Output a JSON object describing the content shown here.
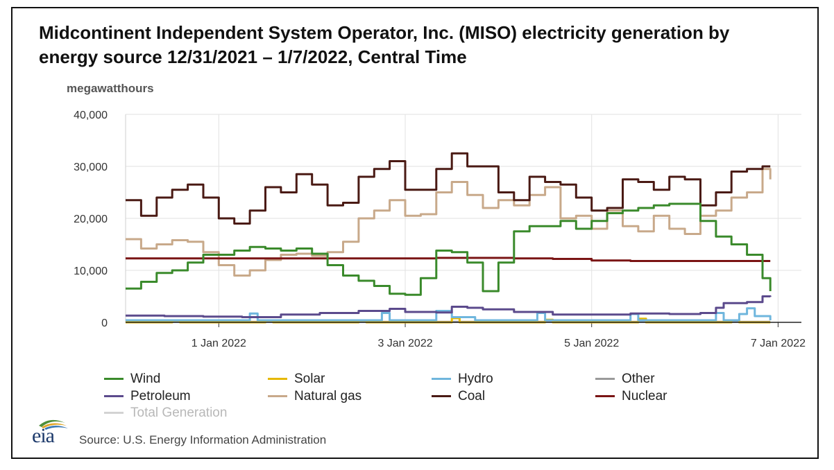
{
  "chart_data": {
    "type": "line",
    "title": "Midcontinent Independent System Operator, Inc. (MISO) electricity generation by energy source 12/31/2021 – 1/7/2022, Central Time",
    "ylabel": "megawatthours",
    "xlabel": "",
    "ylim": [
      0,
      40000
    ],
    "xlim": [
      0,
      174
    ],
    "x_units": "hours since 12/31/2021 00:00",
    "y_ticks": [
      0,
      10000,
      20000,
      30000,
      40000
    ],
    "y_tick_labels": [
      "0",
      "10,000",
      "20,000",
      "30,000",
      "40,000"
    ],
    "x_ticks": [
      24,
      72,
      120,
      168
    ],
    "x_tick_labels": [
      "1 Jan 2022",
      "3 Jan 2022",
      "5 Jan 2022",
      "7 Jan 2022"
    ],
    "grid": true,
    "legend_position": "bottom",
    "series": [
      {
        "name": "Wind",
        "color": "#3a8a2b",
        "x": [
          0,
          4,
          8,
          12,
          16,
          20,
          24,
          28,
          32,
          36,
          40,
          44,
          48,
          52,
          56,
          60,
          64,
          68,
          72,
          76,
          80,
          84,
          88,
          92,
          96,
          100,
          104,
          108,
          112,
          116,
          120,
          124,
          128,
          132,
          136,
          140,
          144,
          148,
          152,
          156,
          160,
          164,
          166
        ],
        "y": [
          6500,
          7800,
          9500,
          10000,
          11500,
          13000,
          13000,
          13800,
          14500,
          14200,
          13800,
          14200,
          13200,
          11000,
          9000,
          8000,
          7000,
          5500,
          5300,
          8500,
          13800,
          13500,
          11500,
          6000,
          11500,
          17500,
          18500,
          18500,
          19500,
          18000,
          19500,
          21000,
          21500,
          22000,
          22500,
          22800,
          22800,
          19500,
          16500,
          15000,
          13000,
          8500,
          6000
        ]
      },
      {
        "name": "Solar",
        "color": "#e6b800",
        "x": [
          0,
          10,
          12,
          14,
          24,
          34,
          36,
          38,
          48,
          58,
          60,
          62,
          72,
          82,
          84,
          86,
          96,
          106,
          108,
          110,
          120,
          130,
          132,
          134,
          144,
          154,
          156,
          158,
          166
        ],
        "y": [
          0,
          0,
          350,
          0,
          0,
          0,
          350,
          0,
          0,
          0,
          350,
          0,
          0,
          0,
          800,
          0,
          0,
          0,
          500,
          0,
          0,
          0,
          700,
          0,
          0,
          0,
          400,
          0,
          0
        ]
      },
      {
        "name": "Hydro",
        "color": "#6fb6dd",
        "x": [
          0,
          20,
          30,
          32,
          34,
          44,
          50,
          60,
          64,
          66,
          68,
          72,
          78,
          80,
          82,
          84,
          90,
          100,
          104,
          106,
          108,
          120,
          128,
          130,
          132,
          136,
          150,
          152,
          154,
          158,
          160,
          162,
          166
        ],
        "y": [
          400,
          400,
          400,
          1700,
          400,
          400,
          400,
          400,
          400,
          1800,
          400,
          400,
          400,
          2200,
          2200,
          1000,
          400,
          400,
          400,
          1800,
          400,
          400,
          400,
          1600,
          400,
          400,
          400,
          1800,
          400,
          1600,
          2700,
          1200,
          400
        ]
      },
      {
        "name": "Other",
        "color": "#9a9a9a",
        "x": [
          0,
          166
        ],
        "y": [
          100,
          100
        ]
      },
      {
        "name": "Petroleum",
        "color": "#5b4a8c",
        "x": [
          0,
          10,
          20,
          30,
          40,
          50,
          60,
          68,
          72,
          80,
          84,
          88,
          92,
          100,
          110,
          120,
          130,
          140,
          148,
          152,
          154,
          160,
          164,
          166
        ],
        "y": [
          1300,
          1200,
          1100,
          1000,
          1500,
          1800,
          2200,
          2600,
          2000,
          1900,
          3000,
          2800,
          2500,
          2000,
          1500,
          1500,
          1700,
          1600,
          1800,
          2800,
          3700,
          3900,
          5000,
          4900
        ]
      },
      {
        "name": "Natural gas",
        "color": "#c8a98a",
        "x": [
          0,
          4,
          8,
          12,
          16,
          20,
          24,
          28,
          32,
          36,
          40,
          44,
          48,
          52,
          56,
          60,
          64,
          68,
          72,
          76,
          80,
          84,
          88,
          92,
          96,
          100,
          104,
          108,
          112,
          116,
          120,
          124,
          128,
          132,
          136,
          140,
          144,
          148,
          152,
          156,
          160,
          164,
          166
        ],
        "y": [
          16000,
          14200,
          15000,
          15800,
          15500,
          13500,
          11000,
          9000,
          10000,
          12000,
          13000,
          13200,
          12800,
          13500,
          15500,
          20000,
          21500,
          23500,
          20500,
          20800,
          25000,
          27000,
          24500,
          22000,
          23500,
          22500,
          24500,
          26000,
          20000,
          20500,
          18000,
          21500,
          18500,
          17500,
          20500,
          18000,
          17000,
          20500,
          21500,
          24000,
          25000,
          29500,
          27500
        ]
      },
      {
        "name": "Coal",
        "color": "#4a1a14",
        "x": [
          0,
          4,
          8,
          12,
          16,
          20,
          24,
          28,
          32,
          36,
          40,
          44,
          48,
          52,
          56,
          60,
          64,
          68,
          72,
          76,
          80,
          84,
          88,
          92,
          96,
          100,
          104,
          108,
          112,
          116,
          120,
          124,
          128,
          132,
          136,
          140,
          144,
          148,
          152,
          156,
          160,
          164,
          166
        ],
        "y": [
          23500,
          20500,
          24000,
          25500,
          26500,
          24000,
          20000,
          19000,
          21500,
          26000,
          25000,
          28500,
          26500,
          22500,
          23000,
          28000,
          29500,
          31000,
          25500,
          25500,
          29500,
          32500,
          30000,
          30000,
          25000,
          23500,
          28000,
          27000,
          26500,
          24000,
          21500,
          22000,
          27500,
          27000,
          25500,
          28000,
          27500,
          22500,
          25000,
          29000,
          29500,
          30000,
          30000
        ]
      },
      {
        "name": "Nuclear",
        "color": "#7a1414",
        "x": [
          0,
          40,
          80,
          100,
          110,
          120,
          130,
          140,
          150,
          160,
          166
        ],
        "y": [
          12300,
          12300,
          12400,
          12300,
          12200,
          11900,
          11800,
          11800,
          11800,
          11800,
          11800
        ]
      },
      {
        "name": "Total Generation",
        "color": "#d3d3d3",
        "x": [],
        "y": []
      }
    ]
  },
  "legend": {
    "wind": "Wind",
    "solar": "Solar",
    "hydro": "Hydro",
    "other": "Other",
    "petroleum": "Petroleum",
    "natural_gas": "Natural gas",
    "coal": "Coal",
    "nuclear": "Nuclear",
    "total": "Total Generation"
  },
  "logo_text": "eia",
  "source": "Source: U.S. Energy Information Administration"
}
